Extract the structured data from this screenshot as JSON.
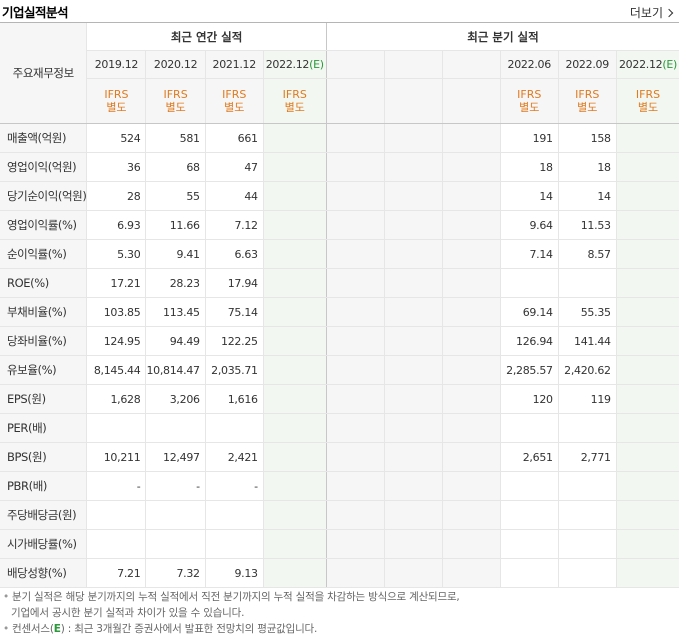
{
  "title": "기업실적분석",
  "more_label": "더보기",
  "header": {
    "left_label": "주요재무정보",
    "annual_group": "최근 연간 실적",
    "quarter_group": "최근 분기 실적",
    "annual_periods": [
      "2019.12",
      "2020.12",
      "2021.12",
      "2022.12"
    ],
    "annual_estimate_mark": "(E)",
    "quarter_periods": [
      "",
      "",
      "",
      "2022.06",
      "2022.09",
      "2022.12"
    ],
    "quarter_estimate_mark": "(E)",
    "standard_line1": "IFRS",
    "standard_line2": "별도"
  },
  "rows": [
    {
      "label": "매출액(억원)",
      "annual": [
        "524",
        "581",
        "661",
        ""
      ],
      "quarter": [
        "",
        "",
        "",
        "191",
        "158",
        ""
      ]
    },
    {
      "label": "영업이익(억원)",
      "annual": [
        "36",
        "68",
        "47",
        ""
      ],
      "quarter": [
        "",
        "",
        "",
        "18",
        "18",
        ""
      ]
    },
    {
      "label": "당기순이익(억원)",
      "annual": [
        "28",
        "55",
        "44",
        ""
      ],
      "quarter": [
        "",
        "",
        "",
        "14",
        "14",
        ""
      ]
    },
    {
      "label": "영업이익률(%)",
      "annual": [
        "6.93",
        "11.66",
        "7.12",
        ""
      ],
      "quarter": [
        "",
        "",
        "",
        "9.64",
        "11.53",
        ""
      ]
    },
    {
      "label": "순이익률(%)",
      "annual": [
        "5.30",
        "9.41",
        "6.63",
        ""
      ],
      "quarter": [
        "",
        "",
        "",
        "7.14",
        "8.57",
        ""
      ]
    },
    {
      "label": "ROE(%)",
      "annual": [
        "17.21",
        "28.23",
        "17.94",
        ""
      ],
      "quarter": [
        "",
        "",
        "",
        "",
        "",
        ""
      ]
    },
    {
      "label": "부채비율(%)",
      "annual": [
        "103.85",
        "113.45",
        "75.14",
        ""
      ],
      "quarter": [
        "",
        "",
        "",
        "69.14",
        "55.35",
        ""
      ]
    },
    {
      "label": "당좌비율(%)",
      "annual": [
        "124.95",
        "94.49",
        "122.25",
        ""
      ],
      "quarter": [
        "",
        "",
        "",
        "126.94",
        "141.44",
        ""
      ]
    },
    {
      "label": "유보율(%)",
      "annual": [
        "8,145.44",
        "10,814.47",
        "2,035.71",
        ""
      ],
      "quarter": [
        "",
        "",
        "",
        "2,285.57",
        "2,420.62",
        ""
      ]
    },
    {
      "label": "EPS(원)",
      "annual": [
        "1,628",
        "3,206",
        "1,616",
        ""
      ],
      "quarter": [
        "",
        "",
        "",
        "120",
        "119",
        ""
      ]
    },
    {
      "label": "PER(배)",
      "annual": [
        "",
        "",
        "",
        ""
      ],
      "quarter": [
        "",
        "",
        "",
        "",
        "",
        ""
      ]
    },
    {
      "label": "BPS(원)",
      "annual": [
        "10,211",
        "12,497",
        "2,421",
        ""
      ],
      "quarter": [
        "",
        "",
        "",
        "2,651",
        "2,771",
        ""
      ]
    },
    {
      "label": "PBR(배)",
      "annual": [
        "-",
        "-",
        "-",
        ""
      ],
      "quarter": [
        "",
        "",
        "",
        "",
        "",
        ""
      ]
    },
    {
      "label": "주당배당금(원)",
      "annual": [
        "",
        "",
        "",
        ""
      ],
      "quarter": [
        "",
        "",
        "",
        "",
        "",
        ""
      ]
    },
    {
      "label": "시가배당률(%)",
      "annual": [
        "",
        "",
        "",
        ""
      ],
      "quarter": [
        "",
        "",
        "",
        "",
        "",
        ""
      ]
    },
    {
      "label": "배당성향(%)",
      "annual": [
        "7.21",
        "7.32",
        "9.13",
        ""
      ],
      "quarter": [
        "",
        "",
        "",
        "",
        "",
        ""
      ]
    }
  ],
  "group_breaks_after_rows": [
    3,
    6,
    9,
    13
  ],
  "notes": {
    "line1": "분기 실적은 해당 분기까지의 누적 실적에서 직전 분기까지의 누적 실적을 차감하는 방식으로 계산되므로,",
    "line2": "기업에서 공시한 분기 실적과 차이가 있을 수 있습니다.",
    "line3_prefix": "컨센서스(",
    "line3_mark": "E",
    "line3_suffix": ") : 최근 3개월간 증권사에서 발표한 전망치의 평균값입니다."
  }
}
